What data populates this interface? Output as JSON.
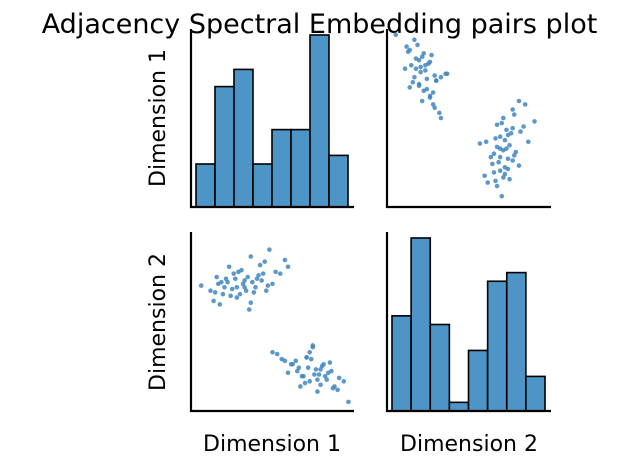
{
  "chart_data": {
    "type": "pairs",
    "title": "Adjacency Spectral Embedding pairs plot",
    "variables": [
      "Dimension 1",
      "Dimension 2"
    ],
    "colors": {
      "fill": "#4c95c6",
      "edge": "#000000",
      "point": "#3f86bf"
    },
    "grid": false,
    "legend": "none",
    "diag_hist": [
      {
        "variable": "Dimension 1",
        "counts": [
          5,
          14,
          16,
          5,
          9,
          9,
          20,
          6
        ]
      },
      {
        "variable": "Dimension 2",
        "counts": [
          11,
          20,
          10,
          1,
          7,
          15,
          16,
          4
        ]
      }
    ],
    "scatter_dim1_vs_dim2": {
      "x_label": "Dimension 1",
      "y_label": "Dimension 2",
      "x": [
        0.04,
        0.1,
        0.12,
        0.15,
        0.18,
        0.2,
        0.22,
        0.25,
        0.27,
        0.3,
        0.32,
        0.35,
        0.38,
        0.4,
        0.42,
        0.45,
        0.48,
        0.55,
        0.6,
        0.13,
        0.16,
        0.19,
        0.21,
        0.24,
        0.26,
        0.28,
        0.29,
        0.31,
        0.33,
        0.34,
        0.36,
        0.37,
        0.39,
        0.41,
        0.43,
        0.46,
        0.5,
        0.52,
        0.58,
        0.14,
        0.17,
        0.23,
        0.27,
        0.32,
        0.36,
        0.44,
        0.47,
        0.5,
        0.53,
        0.56,
        0.6,
        0.62,
        0.65,
        0.67,
        0.7,
        0.72,
        0.74,
        0.76,
        0.78,
        0.8,
        0.82,
        0.85,
        0.88,
        0.9,
        0.93,
        0.96,
        0.99,
        0.58,
        0.63,
        0.66,
        0.69,
        0.71,
        0.73,
        0.75,
        0.77,
        0.79,
        0.81,
        0.83,
        0.86,
        0.89,
        0.92,
        0.68,
        0.72,
        0.76,
        0.79,
        0.84,
        0.87,
        0.74,
        0.81
      ],
      "y": [
        0.71,
        0.68,
        0.62,
        0.72,
        0.66,
        0.75,
        0.82,
        0.78,
        0.64,
        0.8,
        0.7,
        0.57,
        0.67,
        0.75,
        0.83,
        0.85,
        0.92,
        0.78,
        0.82,
        0.67,
        0.6,
        0.7,
        0.73,
        0.69,
        0.75,
        0.79,
        0.66,
        0.72,
        0.68,
        0.76,
        0.61,
        0.73,
        0.7,
        0.77,
        0.74,
        0.68,
        0.72,
        0.79,
        0.86,
        0.76,
        0.73,
        0.65,
        0.7,
        0.74,
        0.88,
        0.78,
        0.71,
        0.32,
        0.31,
        0.28,
        0.2,
        0.25,
        0.27,
        0.23,
        0.18,
        0.29,
        0.15,
        0.36,
        0.22,
        0.19,
        0.24,
        0.16,
        0.21,
        0.12,
        0.17,
        0.15,
        0.03,
        0.27,
        0.25,
        0.21,
        0.18,
        0.14,
        0.23,
        0.28,
        0.19,
        0.16,
        0.22,
        0.25,
        0.2,
        0.11,
        0.1,
        0.12,
        0.29,
        0.35,
        0.09,
        0.18,
        0.26,
        0.32,
        0.13
      ]
    }
  }
}
